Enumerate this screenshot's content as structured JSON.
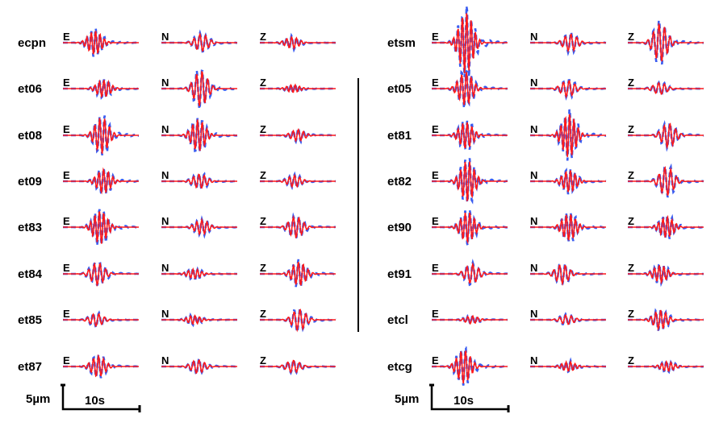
{
  "colors": {
    "observed": "#3a5cf0",
    "synthetic": "#ff1a1a"
  },
  "components": [
    "E",
    "N",
    "Z"
  ],
  "amplitude_unit": "µm",
  "panels": [
    {
      "stations": [
        {
          "name": "ecpn",
          "amp": [
            2.5,
            1.8,
            1.2
          ]
        },
        {
          "name": "et06",
          "amp": [
            1.8,
            3.7,
            0.8
          ]
        },
        {
          "name": "et08",
          "amp": [
            3.8,
            3.3,
            1.2
          ]
        },
        {
          "name": "et09",
          "amp": [
            2.5,
            1.5,
            1.2
          ]
        },
        {
          "name": "et83",
          "amp": [
            3.5,
            1.5,
            2.2
          ]
        },
        {
          "name": "et84",
          "amp": [
            2.3,
            1.0,
            2.5
          ]
        },
        {
          "name": "et85",
          "amp": [
            1.3,
            0.9,
            2.2
          ]
        },
        {
          "name": "et87",
          "amp": [
            2.2,
            1.4,
            1.3
          ]
        }
      ],
      "scale": {
        "amp_label": "5µm",
        "time_label": "10s"
      }
    },
    {
      "stations": [
        {
          "name": "etsm",
          "amp": [
            6.5,
            1.8,
            4.0
          ]
        },
        {
          "name": "et05",
          "amp": [
            3.5,
            1.7,
            1.2
          ]
        },
        {
          "name": "et81",
          "amp": [
            2.8,
            4.6,
            2.5
          ]
        },
        {
          "name": "et82",
          "amp": [
            4.3,
            2.3,
            3.0
          ]
        },
        {
          "name": "et90",
          "amp": [
            3.2,
            2.8,
            2.2
          ]
        },
        {
          "name": "et91",
          "amp": [
            2.0,
            2.0,
            1.8
          ]
        },
        {
          "name": "etcl",
          "amp": [
            0.8,
            1.0,
            2.0
          ]
        },
        {
          "name": "etcg",
          "amp": [
            3.5,
            1.0,
            1.0
          ]
        }
      ],
      "scale": {
        "amp_label": "5µm",
        "time_label": "10s"
      }
    }
  ]
}
